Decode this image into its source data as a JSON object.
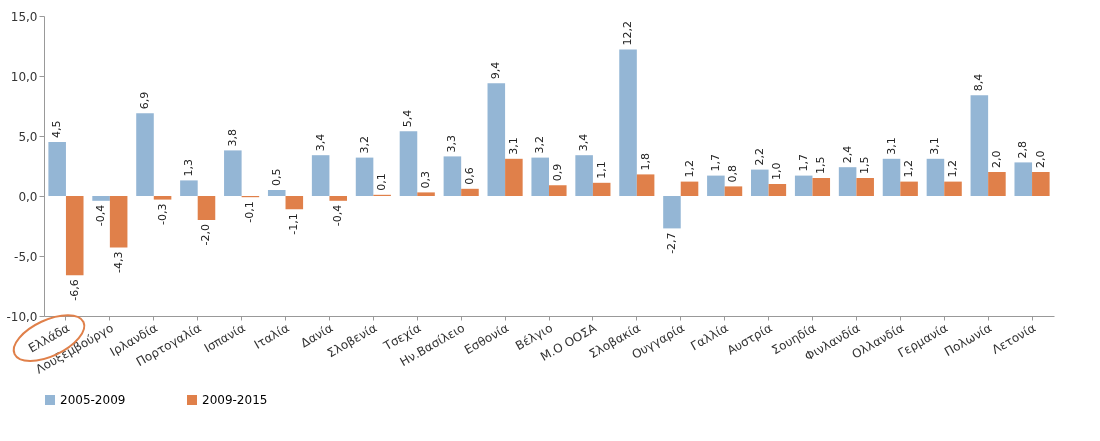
{
  "chart_data": {
    "type": "bar",
    "categories": [
      "Ελλάδα",
      "Λουξεμβούργο",
      "Ιρλανδία",
      "Πορτογαλία",
      "Ισπανία",
      "Ιταλία",
      "Δανία",
      "Σλοβενία",
      "Τσεχία",
      "Ην.Βασίλειο",
      "Εσθονία",
      "Βέλγιο",
      "Μ.Ο ΟΟΣΑ",
      "Σλοβακία",
      "Ουγγαρία",
      "Γαλλία",
      "Αυστρία",
      "Σουηδία",
      "Φινλανδία",
      "Ολλανδία",
      "Γερμανία",
      "Πολωνία",
      "Λετονία"
    ],
    "series": [
      {
        "name": "2005-2009",
        "color": "#94b6d5",
        "values": [
          4.5,
          -0.4,
          6.9,
          1.3,
          3.8,
          0.5,
          3.4,
          3.2,
          5.4,
          3.3,
          9.4,
          3.2,
          3.4,
          12.2,
          -2.7,
          1.7,
          2.2,
          1.7,
          2.4,
          3.1,
          3.1,
          8.4,
          2.8
        ],
        "value_labels": [
          "4,5",
          "-0,4",
          "6,9",
          "1,3",
          "3,8",
          "0,5",
          "3,4",
          "3,2",
          "5,4",
          "3,3",
          "9,4",
          "3,2",
          "3,4",
          "12,2",
          "-2,7",
          "1,7",
          "2,2",
          "1,7",
          "2,4",
          "3,1",
          "3,1",
          "8,4",
          "2,8"
        ]
      },
      {
        "name": "2009-2015",
        "color": "#e0804a",
        "values": [
          -6.6,
          -4.3,
          -0.3,
          -2.0,
          -0.1,
          -1.1,
          -0.4,
          0.1,
          0.3,
          0.6,
          3.1,
          0.9,
          1.1,
          1.8,
          1.2,
          0.8,
          1.0,
          1.5,
          1.5,
          1.2,
          1.2,
          2.0,
          2.0
        ],
        "value_labels": [
          "-6,6",
          "-4,3",
          "-0,3",
          "-2,0",
          "-0,1",
          "-1,1",
          "-0,4",
          "0,1",
          "0,3",
          "0,6",
          "3,1",
          "0,9",
          "1,1",
          "1,8",
          "1,2",
          "0,8",
          "1,0",
          "1,5",
          "1,5",
          "1,2",
          "1,2",
          "2,0",
          "2,0"
        ]
      }
    ],
    "ylim": [
      -10,
      15
    ],
    "yticks": [
      {
        "value": -10,
        "label": "-10,0"
      },
      {
        "value": -5,
        "label": "-5,0"
      },
      {
        "value": 0,
        "label": "0,0"
      },
      {
        "value": 5,
        "label": "5,0"
      },
      {
        "value": 10,
        "label": "10,0"
      },
      {
        "value": 15,
        "label": "15,0"
      }
    ],
    "grid": false,
    "legend": "bottom"
  }
}
